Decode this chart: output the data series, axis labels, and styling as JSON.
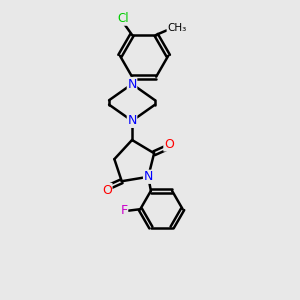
{
  "background_color": "#e8e8e8",
  "line_color": "#000000",
  "N_color": "#0000ff",
  "O_color": "#ff0000",
  "Cl_color": "#00cc00",
  "F_color": "#cc00cc",
  "line_width": 1.8,
  "figsize": [
    3.0,
    3.0
  ],
  "dpi": 100,
  "xlim": [
    0,
    10
  ],
  "ylim": [
    0,
    10
  ]
}
